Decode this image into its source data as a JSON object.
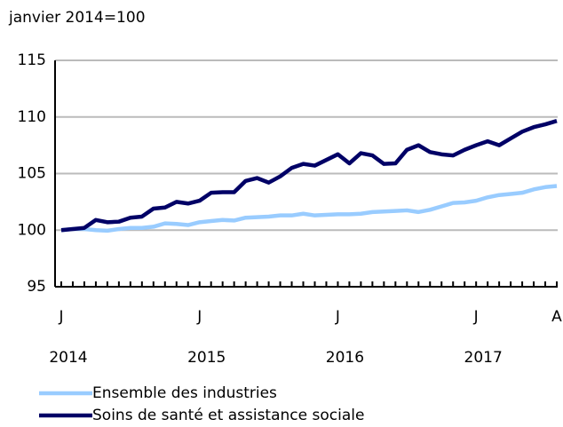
{
  "chart_data": {
    "type": "line",
    "y_label": "janvier 2014=100",
    "categories": [
      "J",
      null,
      null,
      null,
      null,
      null,
      null,
      null,
      null,
      null,
      null,
      null,
      "J",
      null,
      null,
      null,
      null,
      null,
      null,
      null,
      null,
      null,
      null,
      null,
      "J",
      null,
      null,
      null,
      null,
      null,
      null,
      null,
      null,
      null,
      null,
      null,
      "J",
      null,
      null,
      null,
      null,
      null,
      null,
      "A"
    ],
    "year_labels": [
      "2014",
      "2015",
      "2016",
      "2017"
    ],
    "series": [
      {
        "name": "Ensemble des industries",
        "color": "#99ccff",
        "values": [
          100,
          100.1,
          100.1,
          100.0,
          99.95,
          100.1,
          100.2,
          100.2,
          100.3,
          100.6,
          100.55,
          100.45,
          100.7,
          100.8,
          100.9,
          100.85,
          101.1,
          101.15,
          101.2,
          101.3,
          101.3,
          101.45,
          101.3,
          101.35,
          101.4,
          101.4,
          101.45,
          101.6,
          101.65,
          101.7,
          101.75,
          101.6,
          101.8,
          102.1,
          102.4,
          102.45,
          102.6,
          102.9,
          103.1,
          103.2,
          103.3,
          103.6,
          103.8,
          103.9
        ]
      },
      {
        "name": "Soins de santé et assistance sociale",
        "color": "#000066",
        "values": [
          100.0,
          100.1,
          100.2,
          100.9,
          100.7,
          100.75,
          101.1,
          101.2,
          101.9,
          102.0,
          102.5,
          102.35,
          102.6,
          103.3,
          103.35,
          103.35,
          104.35,
          104.6,
          104.2,
          104.75,
          105.5,
          105.85,
          105.7,
          106.2,
          106.7,
          105.9,
          106.8,
          106.6,
          105.85,
          105.9,
          107.1,
          107.5,
          106.9,
          106.7,
          106.6,
          107.1,
          107.5,
          107.85,
          107.5,
          108.1,
          108.7,
          109.1,
          109.35,
          109.65
        ]
      }
    ],
    "ylim": [
      95,
      115
    ],
    "yticks": [
      95,
      100,
      105,
      110,
      115
    ],
    "grid": true
  }
}
